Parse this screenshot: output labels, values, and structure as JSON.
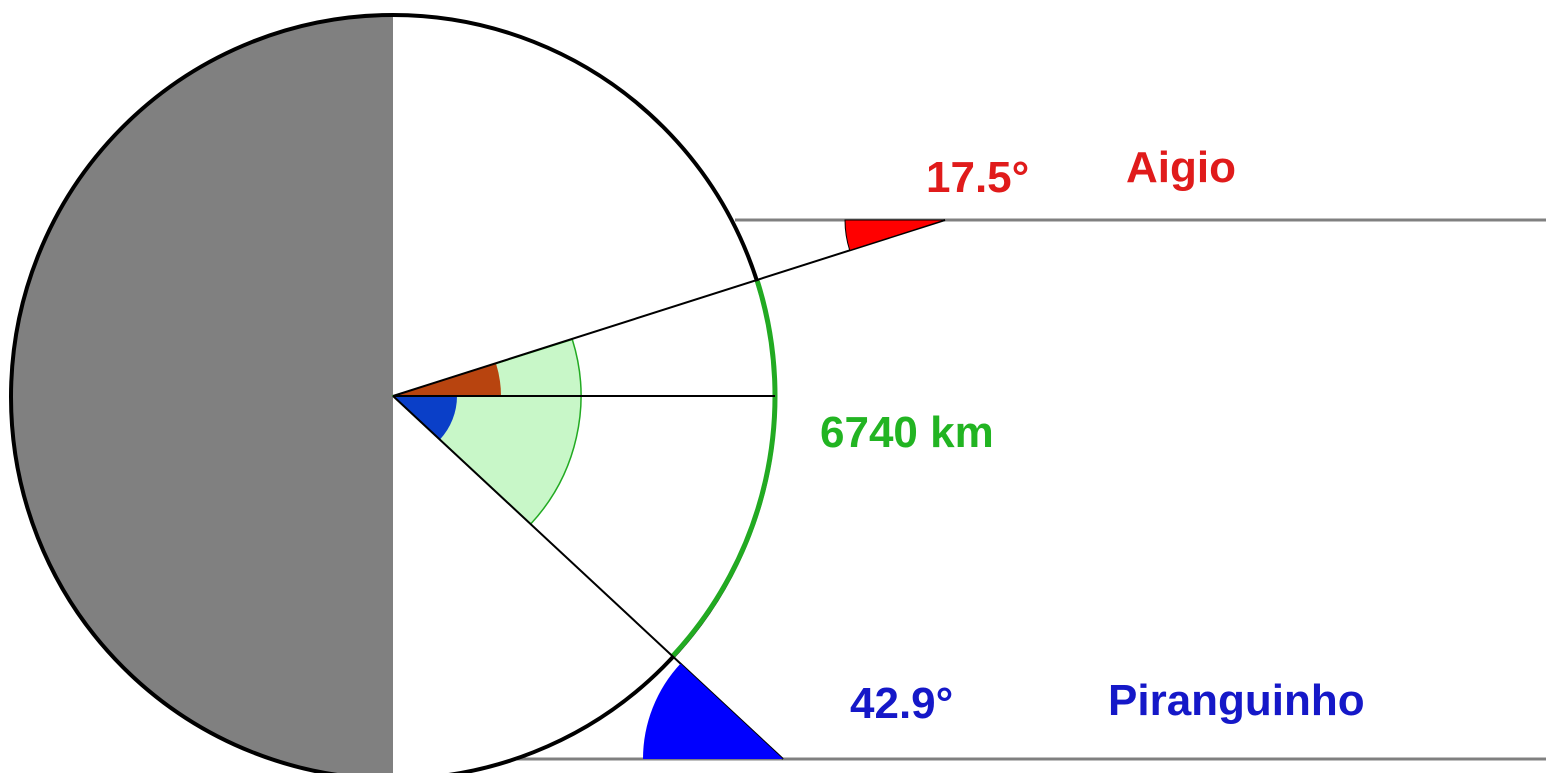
{
  "labels": {
    "aigio_angle": "17.5°",
    "aigio_name": "Aigio",
    "distance": "6740 km",
    "piranguinho_angle": "42.9°",
    "piranguinho_name": "Piranguinho"
  },
  "angles_deg": {
    "aigio": 17.5,
    "piranguinho": 42.9
  },
  "colors": {
    "aigio": "#e01b1b",
    "aigio_wedge": "#ff0000",
    "aigio_center_wedge": "#b8440f",
    "piranguinho": "#1518c8",
    "piranguinho_wedge": "#0000ff",
    "piranguinho_center_wedge": "#0a3fc8",
    "distance": "#22b422",
    "arc": "#22aa22",
    "sector_fill": "#c8f7c8",
    "shadow": "#808080",
    "outline": "#000000",
    "ray": "#808080"
  }
}
